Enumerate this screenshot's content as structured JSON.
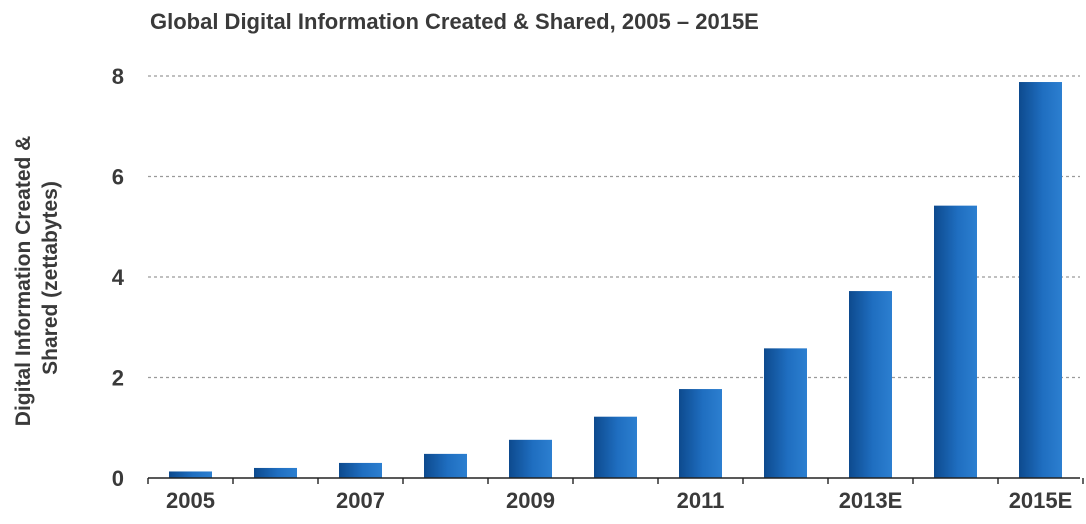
{
  "chart_data": {
    "type": "bar",
    "title": "Global Digital Information Created & Shared, 2005 – 2015E",
    "xlabel": "",
    "ylabel_lines": [
      "Digital Information Created &",
      "Shared (zettabytes)"
    ],
    "categories": [
      "2005",
      "2006",
      "2007",
      "2008",
      "2009",
      "2010",
      "2011",
      "2012",
      "2013E",
      "2014E",
      "2015E"
    ],
    "x_tick_labels_shown": [
      "2005",
      "",
      "2007",
      "",
      "2009",
      "",
      "2011",
      "",
      "2013E",
      "",
      "2015E"
    ],
    "values": [
      0.13,
      0.2,
      0.3,
      0.48,
      0.76,
      1.22,
      1.77,
      2.58,
      3.72,
      5.42,
      7.88
    ],
    "ylim": [
      0,
      8
    ],
    "yticks": [
      0,
      2,
      4,
      6,
      8
    ],
    "grid": "horizontal dashed",
    "legend": "none",
    "colors": {
      "bar_dark": "#0d4a8e",
      "bar_mid": "#1f6ec0",
      "bar_light": "#2c7fd0",
      "axis": "#222222",
      "grid": "#9a9a9a",
      "text": "#3a3a3a"
    }
  }
}
